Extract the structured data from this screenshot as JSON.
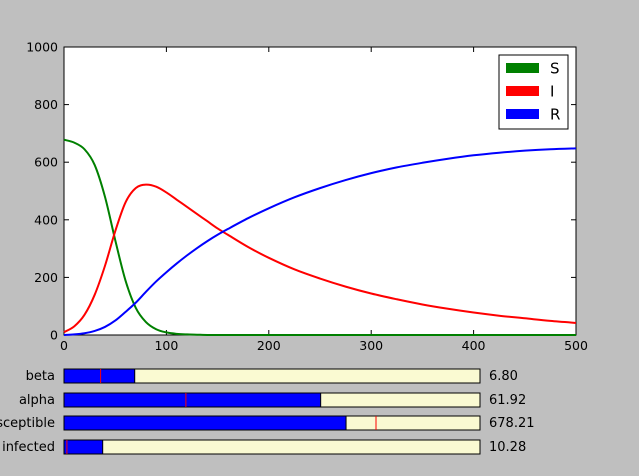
{
  "chart_data": {
    "type": "line",
    "title": "",
    "xlabel": "",
    "ylabel": "",
    "xlim": [
      0,
      500
    ],
    "ylim": [
      0,
      1000
    ],
    "xticks": [
      "0",
      "100",
      "200",
      "300",
      "400",
      "500"
    ],
    "yticks": [
      "0",
      "200",
      "400",
      "600",
      "800",
      "1000"
    ],
    "grid": false,
    "legend_position": "top-right",
    "x": [
      0,
      10,
      20,
      30,
      40,
      50,
      60,
      70,
      80,
      90,
      100,
      110,
      120,
      130,
      140,
      150,
      160,
      180,
      200,
      225,
      250,
      275,
      300,
      325,
      350,
      375,
      400,
      425,
      450,
      475,
      500
    ],
    "series": [
      {
        "name": "S",
        "color": "#008000",
        "values": [
          678,
          668,
          645,
          590,
          480,
          330,
          190,
          95,
          45,
          20,
          9,
          4,
          2,
          1,
          0,
          0,
          0,
          0,
          0,
          0,
          0,
          0,
          0,
          0,
          0,
          0,
          0,
          0,
          0,
          0,
          0
        ]
      },
      {
        "name": "I",
        "color": "#ff0000",
        "values": [
          10,
          30,
          70,
          140,
          240,
          360,
          460,
          510,
          522,
          515,
          495,
          470,
          445,
          420,
          395,
          370,
          348,
          305,
          268,
          228,
          196,
          168,
          144,
          124,
          106,
          91,
          78,
          67,
          58,
          49,
          42
        ]
      },
      {
        "name": "R",
        "color": "#0000ff",
        "values": [
          0,
          2,
          6,
          14,
          28,
          50,
          80,
          112,
          150,
          186,
          218,
          248,
          276,
          302,
          326,
          348,
          368,
          406,
          440,
          478,
          510,
          538,
          562,
          582,
          598,
          612,
          624,
          633,
          640,
          645,
          648
        ]
      }
    ]
  },
  "sliders": [
    {
      "label": "beta",
      "value_text": "6.80",
      "fill_fraction": 0.17,
      "marker_fraction": 0.088
    },
    {
      "label": "alpha",
      "value_text": "61.92",
      "fill_fraction": 0.617,
      "marker_fraction": 0.293
    },
    {
      "label": "susceptible",
      "value_text": "678.21",
      "fill_fraction": 0.678,
      "marker_fraction": 0.75
    },
    {
      "label": "infected",
      "value_text": "10.28",
      "fill_fraction": 0.093,
      "marker_fraction": 0.007
    }
  ],
  "colors": {
    "slider_fill": "#0000ff",
    "slider_track": "#fafad2",
    "slider_marker": "#ff0000",
    "figure_background": "#bfbfbf",
    "axes_background": "#ffffff"
  }
}
